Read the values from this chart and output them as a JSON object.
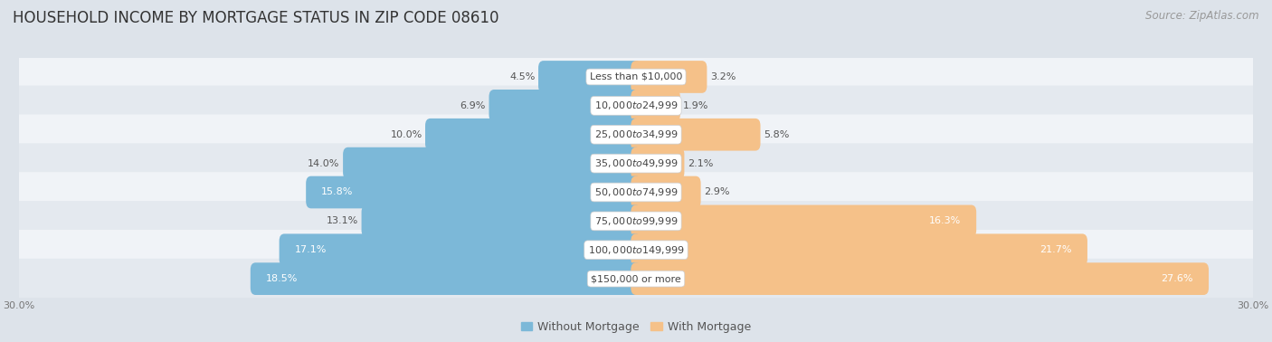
{
  "title": "HOUSEHOLD INCOME BY MORTGAGE STATUS IN ZIP CODE 08610",
  "source": "Source: ZipAtlas.com",
  "categories": [
    "Less than $10,000",
    "$10,000 to $24,999",
    "$25,000 to $34,999",
    "$35,000 to $49,999",
    "$50,000 to $74,999",
    "$75,000 to $99,999",
    "$100,000 to $149,999",
    "$150,000 or more"
  ],
  "without_mortgage": [
    4.5,
    6.9,
    10.0,
    14.0,
    15.8,
    13.1,
    17.1,
    18.5
  ],
  "with_mortgage": [
    3.2,
    1.9,
    5.8,
    2.1,
    2.9,
    16.3,
    21.7,
    27.6
  ],
  "color_without": "#7cb8d8",
  "color_with": "#f5c189",
  "bg_color": "#dde3ea",
  "row_bg_light": "#f0f3f7",
  "row_bg_dark": "#e4e9ef",
  "axis_limit": 30.0,
  "title_fontsize": 12,
  "source_fontsize": 8.5,
  "label_fontsize": 8,
  "cat_fontsize": 8,
  "legend_fontsize": 9,
  "axis_label_fontsize": 8
}
